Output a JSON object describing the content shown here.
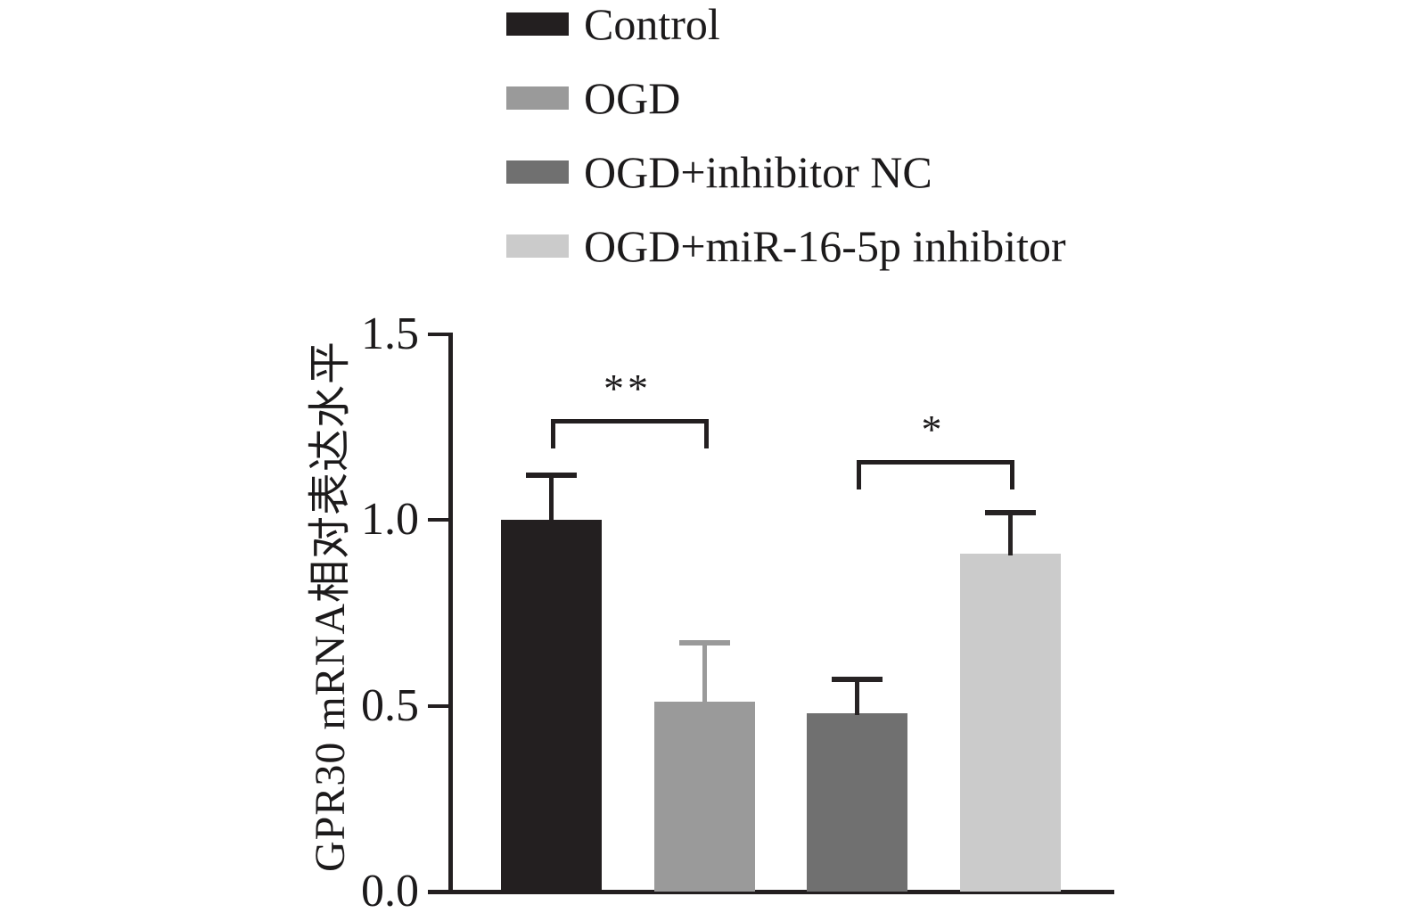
{
  "figure": {
    "background": "#ffffff"
  },
  "legend": {
    "items": [
      {
        "label": "Control",
        "color": "#231f20"
      },
      {
        "label": "OGD",
        "color": "#9a9a9a"
      },
      {
        "label": "OGD+inhibitor NC",
        "color": "#707070"
      },
      {
        "label": "OGD+miR-16-5p inhibitor",
        "color": "#cbcbcb"
      }
    ]
  },
  "chart_data": {
    "type": "bar",
    "title": "",
    "xlabel": "",
    "ylabel": "GPR30 mRNA相对表达水平",
    "ylim": [
      0,
      1.5
    ],
    "yticks": [
      0.0,
      0.5,
      1.0,
      1.5
    ],
    "ytick_labels": [
      "0.0",
      "0.5",
      "1.0",
      "1.5"
    ],
    "grid": false,
    "legend_position": "top",
    "categories": [
      "Control",
      "OGD",
      "OGD+inhibitor NC",
      "OGD+miR-16-5p inhibitor"
    ],
    "values": [
      1.0,
      0.51,
      0.48,
      0.91
    ],
    "errors": [
      0.12,
      0.16,
      0.09,
      0.11
    ],
    "error_direction": "upper-only",
    "bar_colors": [
      "#231f20",
      "#9a9a9a",
      "#707070",
      "#cbcbcb"
    ],
    "error_colors": [
      "#231f20",
      "#9a9a9a",
      "#272324",
      "#272324"
    ],
    "axis_color": "#231f20",
    "annotations": [
      {
        "label": "**",
        "from": 0,
        "to": 1,
        "y": 1.27
      },
      {
        "label": "*",
        "from": 2,
        "to": 3,
        "y": 1.16
      }
    ]
  }
}
